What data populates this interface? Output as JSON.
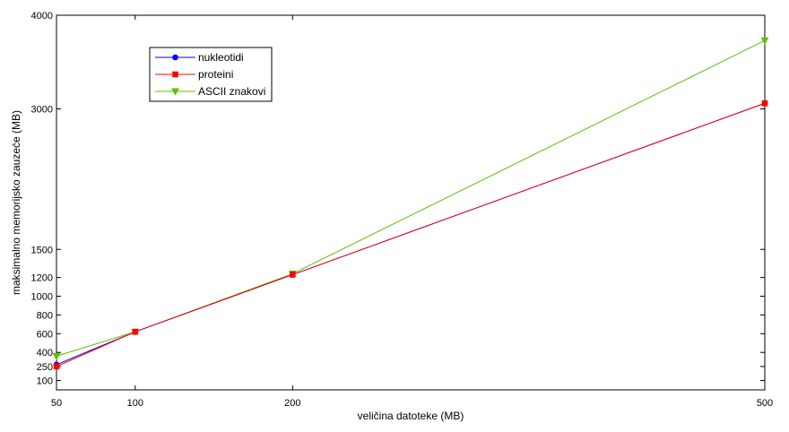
{
  "chart_data": {
    "type": "line",
    "title": "",
    "xlabel": "veličina datoteke (MB)",
    "ylabel": "maksimalno memorijsko zauzeće (MB)",
    "xlim": [
      50,
      500
    ],
    "ylim": [
      0,
      4000
    ],
    "xticks": [
      50,
      100,
      200,
      500
    ],
    "yticks": [
      100,
      250,
      400,
      600,
      800,
      1000,
      1200,
      1500,
      3000,
      4000
    ],
    "x": [
      50,
      100,
      200,
      500
    ],
    "grid": false,
    "legend_position": "top-left",
    "series": [
      {
        "name": "nukleotidi",
        "values": [
          270,
          620,
          1230,
          3060
        ],
        "color": "#0000ff",
        "marker": "circle"
      },
      {
        "name": "proteini",
        "values": [
          250,
          620,
          1230,
          3060
        ],
        "color": "#ff0000",
        "marker": "square"
      },
      {
        "name": "ASCII znakovi",
        "values": [
          360,
          620,
          1240,
          3730
        ],
        "color": "#5cc000",
        "marker": "triangle-down"
      }
    ]
  }
}
